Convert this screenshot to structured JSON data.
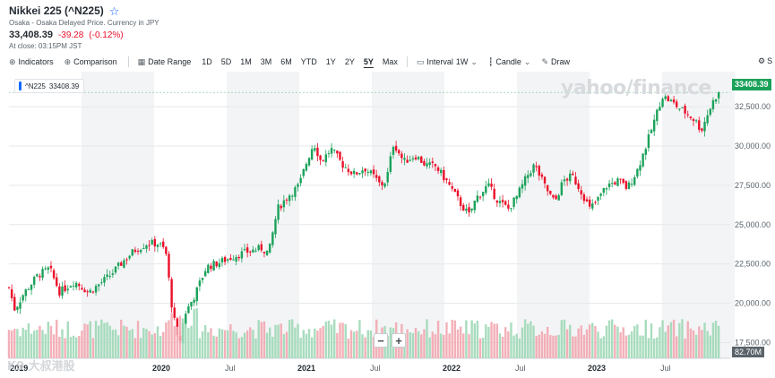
{
  "header": {
    "title": "Nikkei 225 (^N225)",
    "subtitle": "Osaka - Osaka Delayed Price. Currency in JPY",
    "price": "33,408.39",
    "change": "-39.28",
    "change_pct": "(-0.12%)",
    "close_time": "At close: 03:15PM JST",
    "star_icon": "star-icon"
  },
  "toolbar": {
    "indicators": "Indicators",
    "comparison": "Comparison",
    "date_range": "Date Range",
    "ranges": [
      "1D",
      "5D",
      "1M",
      "3M",
      "6M",
      "YTD",
      "1Y",
      "2Y",
      "5Y",
      "Max"
    ],
    "active_range": "5Y",
    "interval_label": "Interval",
    "interval_value": "1W",
    "chart_type": "Candle",
    "draw": "Draw",
    "settings_label": "S"
  },
  "legend": {
    "symbol": "^N225",
    "value": "33408.39",
    "color": "#0f69ff"
  },
  "watermark": "yahoo/finance",
  "overlay_logo": "K9 大叔港股",
  "zoom": {
    "minus": "−",
    "plus": "+"
  },
  "colors": {
    "up": "#1ba25a",
    "down": "#eb0f29",
    "up_vol": "#9fd8b7",
    "down_vol": "#f2a7b0"
  },
  "chart_data": {
    "type": "candlestick",
    "title": "",
    "interval": "1W",
    "range": "5Y",
    "ylim": [
      16500,
      34500
    ],
    "y_ticks": [
      17500,
      20000,
      22500,
      25000,
      27500,
      30000,
      32500
    ],
    "y_tick_labels": [
      "17,500.00",
      "20,000.00",
      "22,500.00",
      "25,000.00",
      "27,500.00",
      "30,000.00",
      "32,500.00"
    ],
    "x_labels": [
      {
        "label": "2019",
        "major": true,
        "t": 0.02
      },
      {
        "label": "2020",
        "major": true,
        "t": 1.0
      },
      {
        "label": "Jul",
        "major": false,
        "t": 1.5
      },
      {
        "label": "2021",
        "major": true,
        "t": 2.0
      },
      {
        "label": "Jul",
        "major": false,
        "t": 2.5
      },
      {
        "label": "2022",
        "major": true,
        "t": 3.0
      },
      {
        "label": "Jul",
        "major": false,
        "t": 3.5
      },
      {
        "label": "2023",
        "major": true,
        "t": 4.0
      },
      {
        "label": "Jul",
        "major": false,
        "t": 4.5
      }
    ],
    "anchors": [
      [
        0.0,
        21000
      ],
      [
        0.04,
        19600
      ],
      [
        0.1,
        20600
      ],
      [
        0.2,
        21800
      ],
      [
        0.28,
        22200
      ],
      [
        0.35,
        20700
      ],
      [
        0.45,
        21400
      ],
      [
        0.55,
        20700
      ],
      [
        0.62,
        21200
      ],
      [
        0.7,
        21800
      ],
      [
        0.8,
        22800
      ],
      [
        0.87,
        23400
      ],
      [
        0.95,
        23800
      ],
      [
        1.03,
        23800
      ],
      [
        1.08,
        23300
      ],
      [
        1.12,
        20000
      ],
      [
        1.17,
        17200
      ],
      [
        1.21,
        19300
      ],
      [
        1.28,
        20500
      ],
      [
        1.36,
        22300
      ],
      [
        1.45,
        22600
      ],
      [
        1.55,
        23000
      ],
      [
        1.65,
        23300
      ],
      [
        1.74,
        23500
      ],
      [
        1.79,
        23200
      ],
      [
        1.85,
        26000
      ],
      [
        1.92,
        26800
      ],
      [
        2.0,
        27500
      ],
      [
        2.04,
        28700
      ],
      [
        2.1,
        30200
      ],
      [
        2.15,
        29000
      ],
      [
        2.22,
        29800
      ],
      [
        2.3,
        28800
      ],
      [
        2.38,
        28200
      ],
      [
        2.45,
        28600
      ],
      [
        2.52,
        28000
      ],
      [
        2.56,
        27500
      ],
      [
        2.6,
        27800
      ],
      [
        2.65,
        30200
      ],
      [
        2.72,
        29000
      ],
      [
        2.8,
        29400
      ],
      [
        2.87,
        28800
      ],
      [
        2.94,
        28700
      ],
      [
        3.02,
        27700
      ],
      [
        3.08,
        26800
      ],
      [
        3.12,
        26200
      ],
      [
        3.17,
        25600
      ],
      [
        3.22,
        26700
      ],
      [
        3.3,
        27500
      ],
      [
        3.37,
        26500
      ],
      [
        3.44,
        26000
      ],
      [
        3.5,
        26800
      ],
      [
        3.57,
        28100
      ],
      [
        3.62,
        28800
      ],
      [
        3.7,
        27300
      ],
      [
        3.76,
        26400
      ],
      [
        3.82,
        27800
      ],
      [
        3.88,
        28100
      ],
      [
        3.95,
        27000
      ],
      [
        4.0,
        26000
      ],
      [
        4.05,
        26500
      ],
      [
        4.12,
        27500
      ],
      [
        4.2,
        27800
      ],
      [
        4.26,
        27300
      ],
      [
        4.33,
        28500
      ],
      [
        4.4,
        30300
      ],
      [
        4.46,
        32000
      ],
      [
        4.5,
        33200
      ],
      [
        4.55,
        32900
      ],
      [
        4.62,
        32400
      ],
      [
        4.68,
        32000
      ],
      [
        4.73,
        31600
      ],
      [
        4.77,
        31000
      ],
      [
        4.82,
        32200
      ],
      [
        4.86,
        33000
      ],
      [
        4.89,
        33408
      ]
    ],
    "last_price": 33408.39,
    "last_volume": "82.70M",
    "series": [
      {
        "name": "^N225"
      }
    ]
  }
}
